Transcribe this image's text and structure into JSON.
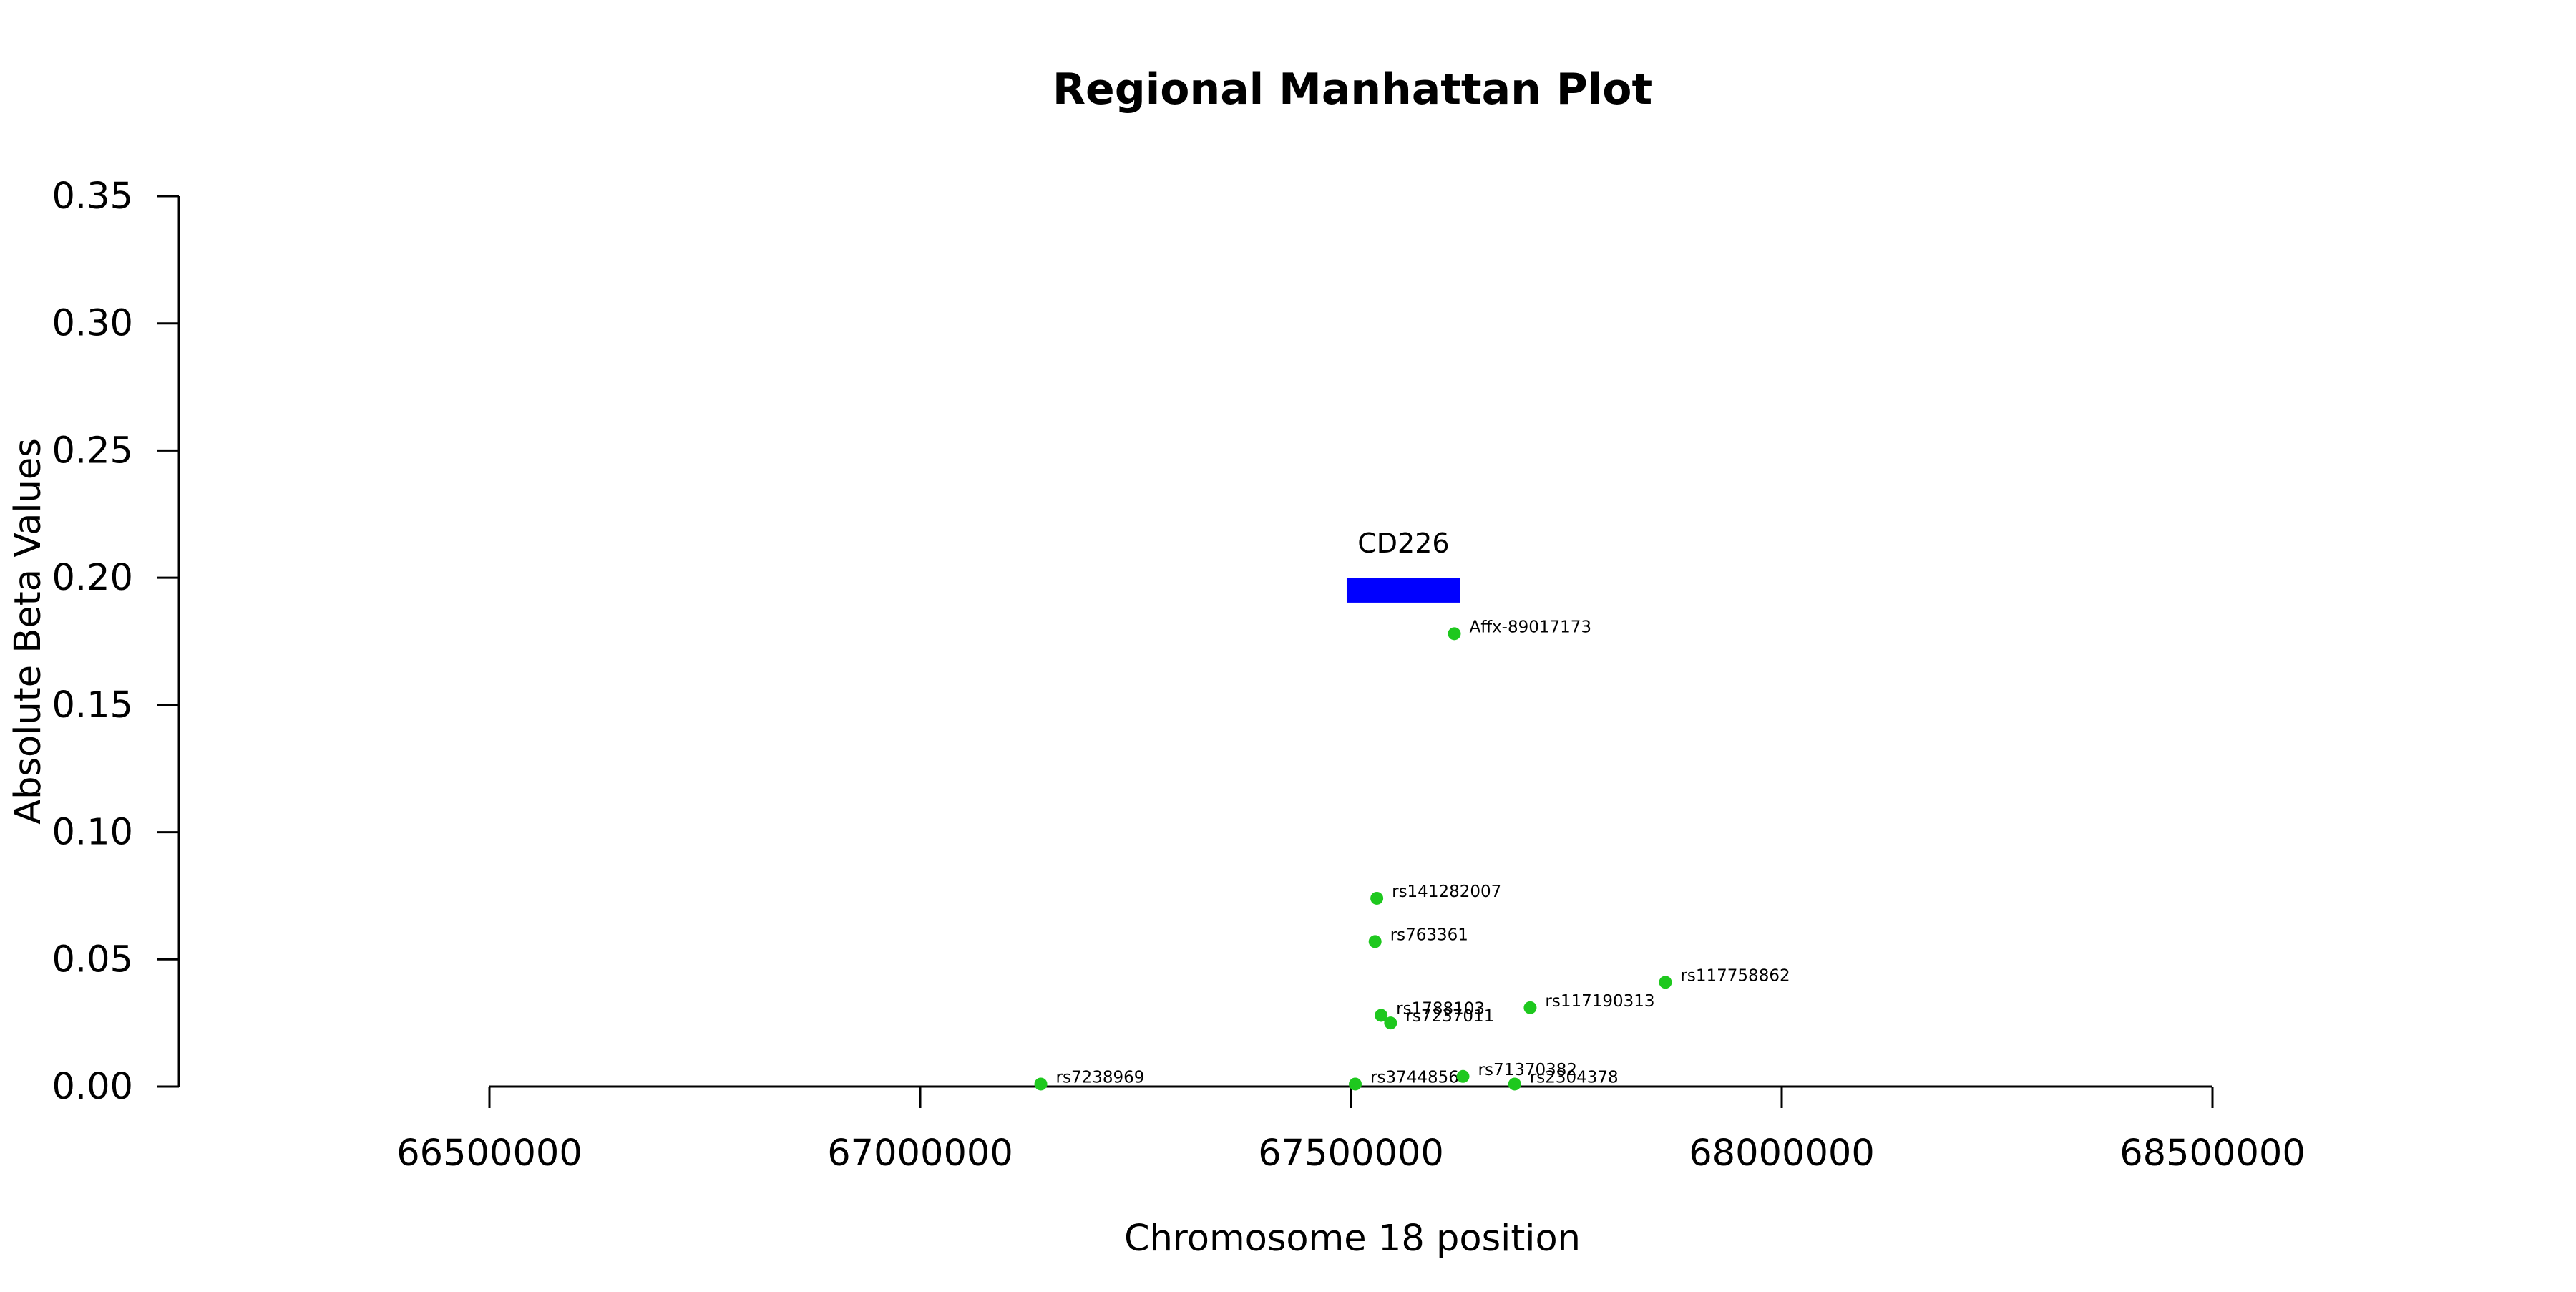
{
  "chart_data": {
    "type": "scatter",
    "title": "Regional Manhattan Plot",
    "xlabel": "Chromosome 18 position",
    "ylabel": "Absolute Beta Values",
    "xlim": [
      66500000,
      68500000
    ],
    "ylim": [
      0,
      0.35
    ],
    "x_ticks": [
      66500000,
      67000000,
      67500000,
      68000000,
      68500000
    ],
    "x_tick_labels": [
      "66500000",
      "67000000",
      "67500000",
      "68000000",
      "68500000"
    ],
    "y_ticks": [
      0,
      0.05,
      0.1,
      0.15,
      0.2,
      0.25,
      0.3,
      0.35
    ],
    "y_tick_labels": [
      "0.00",
      "0.05",
      "0.10",
      "0.15",
      "0.20",
      "0.25",
      "0.30",
      "0.35"
    ],
    "grid": false,
    "point_color": "#1ec81e",
    "points": [
      {
        "label": "Affx-89017173",
        "x": 67620000,
        "y": 0.178
      },
      {
        "label": "rs141282007",
        "x": 67530000,
        "y": 0.074
      },
      {
        "label": "rs763361",
        "x": 67528000,
        "y": 0.057
      },
      {
        "label": "rs117758862",
        "x": 67865000,
        "y": 0.041
      },
      {
        "label": "rs117190313",
        "x": 67708000,
        "y": 0.031
      },
      {
        "label": "rs1788103",
        "x": 67535000,
        "y": 0.028
      },
      {
        "label": "rs7237011",
        "x": 67546000,
        "y": 0.025
      },
      {
        "label": "rs7238969",
        "x": 67140000,
        "y": 0.001
      },
      {
        "label": "rs3744856",
        "x": 67505000,
        "y": 0.001
      },
      {
        "label": "rs71370382",
        "x": 67630000,
        "y": 0.004
      },
      {
        "label": "rs2304378",
        "x": 67690000,
        "y": 0.001
      }
    ],
    "gene": {
      "name": "CD226",
      "start": 67495000,
      "end": 67627000,
      "y": 0.195,
      "color": "#0000ff"
    }
  }
}
